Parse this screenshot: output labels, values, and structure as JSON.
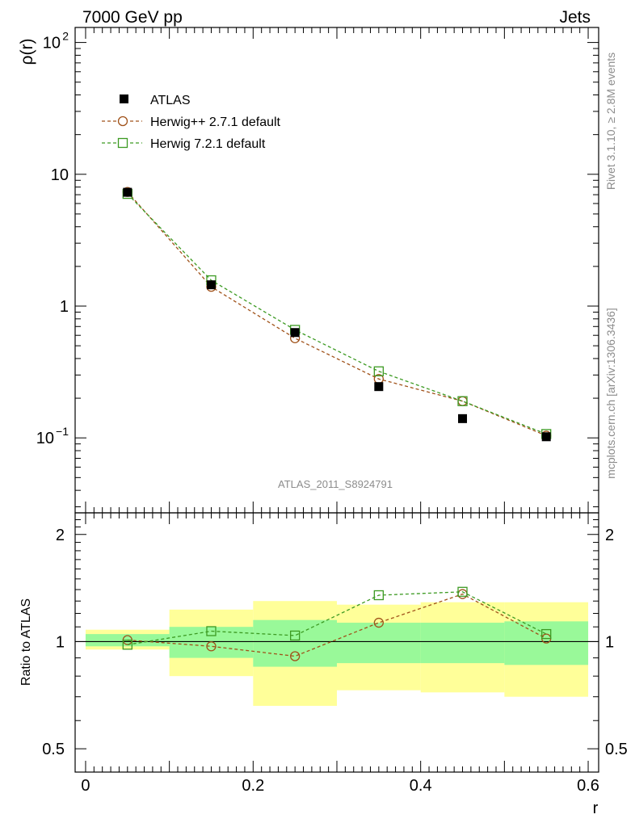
{
  "header": {
    "left": "7000 GeV pp",
    "right": "Jets"
  },
  "side_text": {
    "rivet": "Rivet 3.1.10, ≥ 2.8M events",
    "mcplots": "mcplots.cern.ch [arXiv:1306.3436]"
  },
  "analysis_label": "ATLAS_2011_S8924791",
  "chart_data": [
    {
      "type": "scatter",
      "panel": "main",
      "ylabel": "ρ(r)",
      "yscale": "log",
      "ylim": [
        0.027,
        130
      ],
      "xlim": [
        -0.0125,
        0.6125
      ],
      "y_ticks": [
        {
          "value": 100,
          "base": "10",
          "exp": "2"
        },
        {
          "value": 10,
          "label": "10"
        },
        {
          "value": 1,
          "label": "1"
        },
        {
          "value": 0.1,
          "base": "10",
          "exp": "−1"
        }
      ],
      "legend": {
        "position": "top-left",
        "entries": [
          "ATLAS",
          "Herwig++ 2.7.1 default",
          "Herwig 7.2.1 default"
        ]
      },
      "x": [
        0.05,
        0.15,
        0.25,
        0.35,
        0.45,
        0.55
      ],
      "series": [
        {
          "name": "ATLAS",
          "marker": "filled-square",
          "color": "#000000",
          "values": [
            7.3,
            1.45,
            0.63,
            0.245,
            0.14,
            0.102
          ]
        },
        {
          "name": "Herwig++ 2.7.1 default",
          "marker": "open-circle",
          "line": "dashed",
          "color": "#a0521a",
          "values": [
            7.35,
            1.4,
            0.57,
            0.28,
            0.19,
            0.104
          ]
        },
        {
          "name": "Herwig 7.2.1 default",
          "marker": "open-square",
          "line": "dashed",
          "color": "#3c9a22",
          "values": [
            7.1,
            1.57,
            0.66,
            0.32,
            0.19,
            0.107
          ]
        }
      ]
    },
    {
      "type": "scatter",
      "panel": "ratio",
      "xlabel": "r",
      "ylabel": "Ratio to ATLAS",
      "yscale": "log",
      "ylim": [
        0.43,
        2.3
      ],
      "xlim": [
        -0.0125,
        0.6125
      ],
      "x_ticks": [
        {
          "value": 0,
          "label": "0"
        },
        {
          "value": 0.2,
          "label": "0.2"
        },
        {
          "value": 0.4,
          "label": "0.4"
        },
        {
          "value": 0.6,
          "label": "0.6"
        }
      ],
      "y_ticks": [
        {
          "value": 2,
          "label": "2"
        },
        {
          "value": 1,
          "label": "1"
        },
        {
          "value": 0.5,
          "label": "0.5"
        }
      ],
      "uncertainty_bands": {
        "bins": [
          [
            0.0,
            0.1
          ],
          [
            0.1,
            0.2
          ],
          [
            0.2,
            0.3
          ],
          [
            0.3,
            0.4
          ],
          [
            0.4,
            0.5
          ],
          [
            0.5,
            0.6
          ]
        ],
        "stat": {
          "color": "#99f999",
          "low": [
            0.97,
            0.9,
            0.85,
            0.87,
            0.87,
            0.86
          ],
          "high": [
            1.05,
            1.1,
            1.15,
            1.13,
            1.13,
            1.14
          ]
        },
        "total": {
          "color": "#ffff99",
          "low": [
            0.95,
            0.8,
            0.66,
            0.73,
            0.72,
            0.7
          ],
          "high": [
            1.08,
            1.23,
            1.3,
            1.27,
            1.29,
            1.29
          ]
        }
      },
      "x": [
        0.05,
        0.15,
        0.25,
        0.35,
        0.45,
        0.55
      ],
      "series": [
        {
          "name": "Herwig++ 2.7.1 default",
          "marker": "open-circle",
          "line": "dashed",
          "color": "#a0521a",
          "values": [
            1.01,
            0.97,
            0.91,
            1.13,
            1.36,
            1.02
          ]
        },
        {
          "name": "Herwig 7.2.1 default",
          "marker": "open-square",
          "line": "dashed",
          "color": "#3c9a22",
          "values": [
            0.98,
            1.07,
            1.04,
            1.35,
            1.38,
            1.05
          ]
        }
      ]
    }
  ]
}
